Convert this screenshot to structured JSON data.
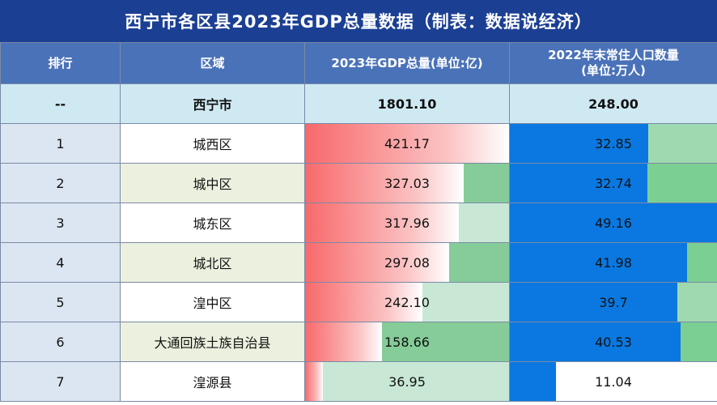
{
  "title": "西宁市各区县2023年GDP总量数据（制表：数据说经济）",
  "headers": {
    "rank": "排行",
    "area": "区域",
    "gdp": "2023年GDP总量(单位:亿)",
    "pop_line1": "2022年末常住人口数量",
    "pop_line2": "(单位:万人)"
  },
  "total": {
    "rank": "--",
    "area": "西宁市",
    "gdp": "1801.10",
    "pop": "248.00"
  },
  "rows": [
    {
      "rank": "1",
      "area": "城西区",
      "gdp": "421.17",
      "pop": "32.85",
      "gdp_value": 421.17,
      "pop_value": 32.85
    },
    {
      "rank": "2",
      "area": "城中区",
      "gdp": "327.03",
      "pop": "32.74",
      "gdp_value": 327.03,
      "pop_value": 32.74
    },
    {
      "rank": "3",
      "area": "城东区",
      "gdp": "317.96",
      "pop": "49.16",
      "gdp_value": 317.96,
      "pop_value": 49.16
    },
    {
      "rank": "4",
      "area": "城北区",
      "gdp": "297.08",
      "pop": "41.98",
      "gdp_value": 297.08,
      "pop_value": 41.98
    },
    {
      "rank": "5",
      "area": "湟中区",
      "gdp": "242.10",
      "pop": "39.7",
      "gdp_value": 242.1,
      "pop_value": 39.7
    },
    {
      "rank": "6",
      "area": "大通回族土族自治县",
      "gdp": "158.66",
      "pop": "40.53",
      "gdp_value": 158.66,
      "pop_value": 40.53
    },
    {
      "rank": "7",
      "area": "湟源县",
      "gdp": "36.95",
      "pop": "11.04",
      "gdp_value": 36.95,
      "pop_value": 11.04
    }
  ],
  "colors": {
    "title_bg": "#1b3f93",
    "header_bg": "#4a72b9",
    "gdp_bar": "#f8696b",
    "pop_bar": "#0a78e0"
  }
}
